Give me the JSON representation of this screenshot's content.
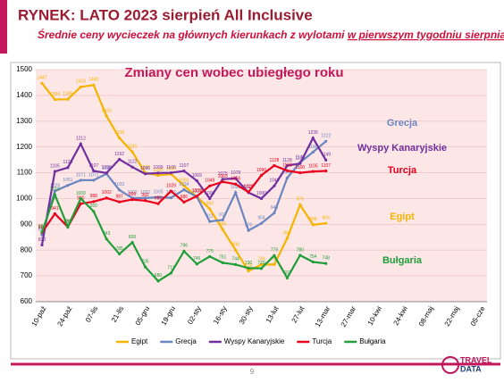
{
  "header": {
    "title": "RYNEK: LATO 2023 sierpień All Inclusive",
    "subtitle": "Średnie ceny wycieczek na głównych kierunkach z wylotami ",
    "subtitle_underlined": "w pierwszym tygodniu sierpnia"
  },
  "chart_data": {
    "type": "line",
    "title": "Zmiany cen wobec ubiegłego roku",
    "categories": [
      "10-paź",
      null,
      "24-paź",
      null,
      "07-lis",
      null,
      "21-lis",
      null,
      "05-gru",
      null,
      "19-gru",
      null,
      "02-sty",
      null,
      "16-sty",
      null,
      "30-sty",
      null,
      "13-lut",
      null,
      "27-lut",
      null,
      "13-mar",
      null,
      "27-mar",
      null,
      "10-kwi",
      null,
      "24-kwi",
      null,
      "08-maj",
      null,
      "22-maj",
      null,
      "05-cze"
    ],
    "series": [
      {
        "name": "Egipt",
        "color": "#f5b400",
        "values": [
          1447,
          1384,
          1385,
          1433,
          1440,
          1320,
          1235,
          1181,
          1100,
          1090,
          1095,
          1050,
          1007,
          960,
          880,
          800,
          719,
          744,
          744,
          846,
          976,
          898,
          904,
          null,
          null,
          null,
          null,
          null,
          null,
          null,
          null,
          null,
          null,
          null,
          null
        ]
      },
      {
        "name": "Grecja",
        "color": "#6a85c0",
        "values": [
          859,
          1029,
          1051,
          1071,
          1071,
          1096,
          1033,
          1002,
          1002,
          1005,
          1003,
          1034,
          1007,
          911,
          917,
          1023,
          876,
          904,
          944,
          1080,
          1140,
          1180,
          1222,
          null,
          null,
          null,
          null,
          null,
          null,
          null,
          null,
          null,
          null,
          null,
          null
        ]
      },
      {
        "name": "Wyspy Kanaryjskie",
        "color": "#7030a0",
        "values": [
          820,
          1105,
          1120,
          1212,
          1107,
          1099,
          1152,
          1122,
          1096,
          1099,
          1100,
          1107,
          1069,
          1000,
          1075,
          1078,
          1023,
          1000,
          1049,
          1128,
          1136,
          1235,
          1149,
          null,
          null,
          null,
          null,
          null,
          null,
          null,
          null,
          null,
          null,
          null,
          null
        ]
      },
      {
        "name": "Turcja",
        "color": "#e8001c",
        "values": [
          868,
          941,
          890,
          980,
          988,
          1002,
          987,
          996,
          992,
          980,
          1029,
          986,
          1009,
          1049,
          1065,
          1056,
          1025,
          1090,
          1128,
          1108,
          1100,
          1105,
          1107,
          null,
          null,
          null,
          null,
          null,
          null,
          null,
          null,
          null,
          null,
          null,
          null
        ]
      },
      {
        "name": "Bułgaria",
        "color": "#1f9e3a",
        "values": [
          870,
          1015,
          890,
          1000,
          950,
          843,
          785,
          830,
          735,
          680,
          711,
          796,
          746,
          775,
          751,
          744,
          730,
          729,
          779,
          692,
          780,
          754,
          748,
          null,
          null,
          null,
          null,
          null,
          null,
          null,
          null,
          null,
          null,
          null,
          null
        ]
      }
    ],
    "ylim": [
      600,
      1500
    ],
    "yticks": [
      600,
      700,
      800,
      900,
      1000,
      1100,
      1200,
      1300,
      1400,
      1500
    ],
    "grid": true,
    "legend": "bottom"
  },
  "footer": {
    "page": "9",
    "logo_top": "TRAVEL",
    "logo_bottom": "DATA"
  }
}
